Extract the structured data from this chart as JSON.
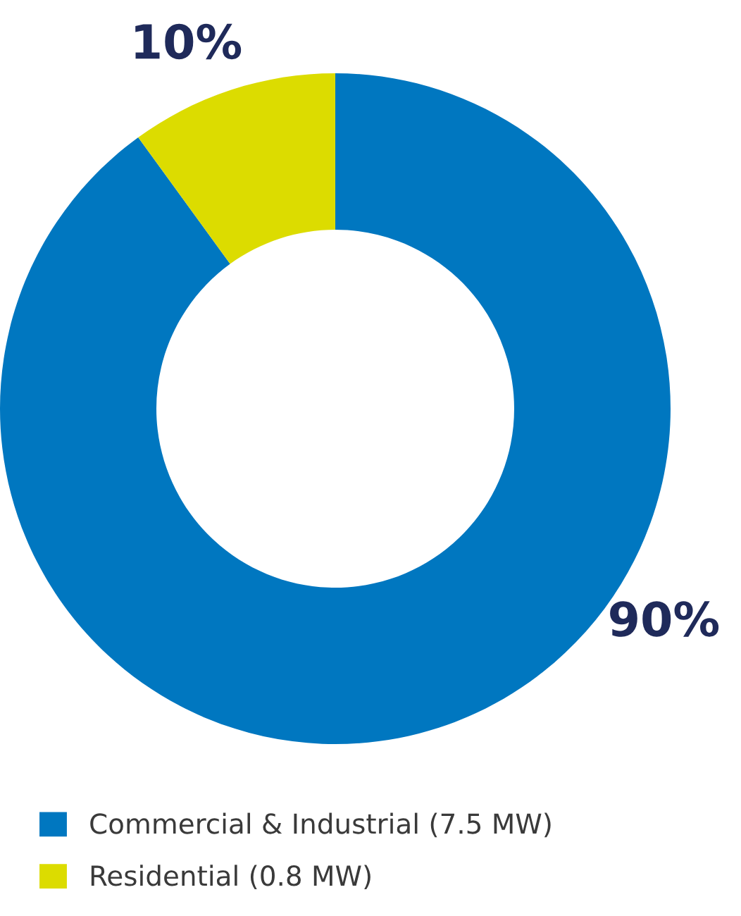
{
  "chart_data": {
    "type": "donut",
    "categories": [
      "Commercial & Industrial (7.5 MW)",
      "Residential (0.8 MW)"
    ],
    "values": [
      90,
      10
    ],
    "colors": [
      "#0077c0",
      "#dcdc00"
    ],
    "value_labels": [
      "90%",
      "10%"
    ],
    "legend": "bottom left"
  }
}
